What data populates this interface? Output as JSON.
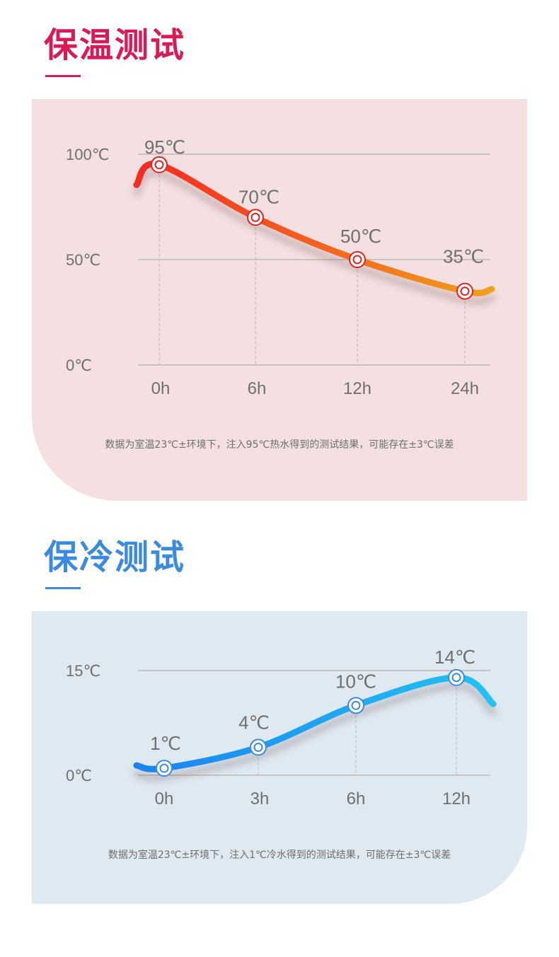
{
  "warm": {
    "title": "保温测试",
    "note": "数据为室温23℃±环境下，注入95℃热水得到的测试结果，可能存在±3℃误差",
    "colors": {
      "title": "#d91a56",
      "underline": "#d91a56",
      "panel_bg": "#f5e0e1",
      "curve_start": "#f52a22",
      "curve_mid": "#f5601e",
      "curve_end": "#eea21c",
      "marker": "#e4211f",
      "axis_text": "#6f6f6f",
      "grid": "#b5b0b0"
    },
    "chart_data": {
      "type": "line",
      "title": "",
      "xlabel": "",
      "ylabel": "",
      "categories": [
        "0h",
        "6h",
        "12h",
        "24h"
      ],
      "y_ticks": [
        "100℃",
        "50℃",
        "0℃"
      ],
      "ylim": [
        0,
        100
      ],
      "series": [
        {
          "values": [
            95,
            70,
            50,
            35
          ],
          "labels": [
            "95℃",
            "70℃",
            "50℃",
            "35℃"
          ]
        }
      ]
    }
  },
  "cold": {
    "title": "保冷测试",
    "note": "数据为室温23℃±环境下，注入1℃冷水得到的测试结果，可能存在±3℃误差",
    "colors": {
      "title": "#3a8ae0",
      "underline": "#3a8ae0",
      "panel_bg": "#dfe9f2",
      "curve_start": "#1a83f0",
      "curve_end": "#22c2f4",
      "marker": "#3a8ae0",
      "axis_text": "#6f6f6f",
      "grid": "#b5b0b0"
    },
    "chart_data": {
      "type": "line",
      "title": "",
      "xlabel": "",
      "ylabel": "",
      "categories": [
        "0h",
        "3h",
        "6h",
        "12h"
      ],
      "y_ticks": [
        "15℃",
        "0℃"
      ],
      "ylim": [
        0,
        15
      ],
      "series": [
        {
          "values": [
            1,
            4,
            10,
            14
          ],
          "labels": [
            "1℃",
            "4℃",
            "10℃",
            "14℃"
          ]
        }
      ]
    }
  }
}
